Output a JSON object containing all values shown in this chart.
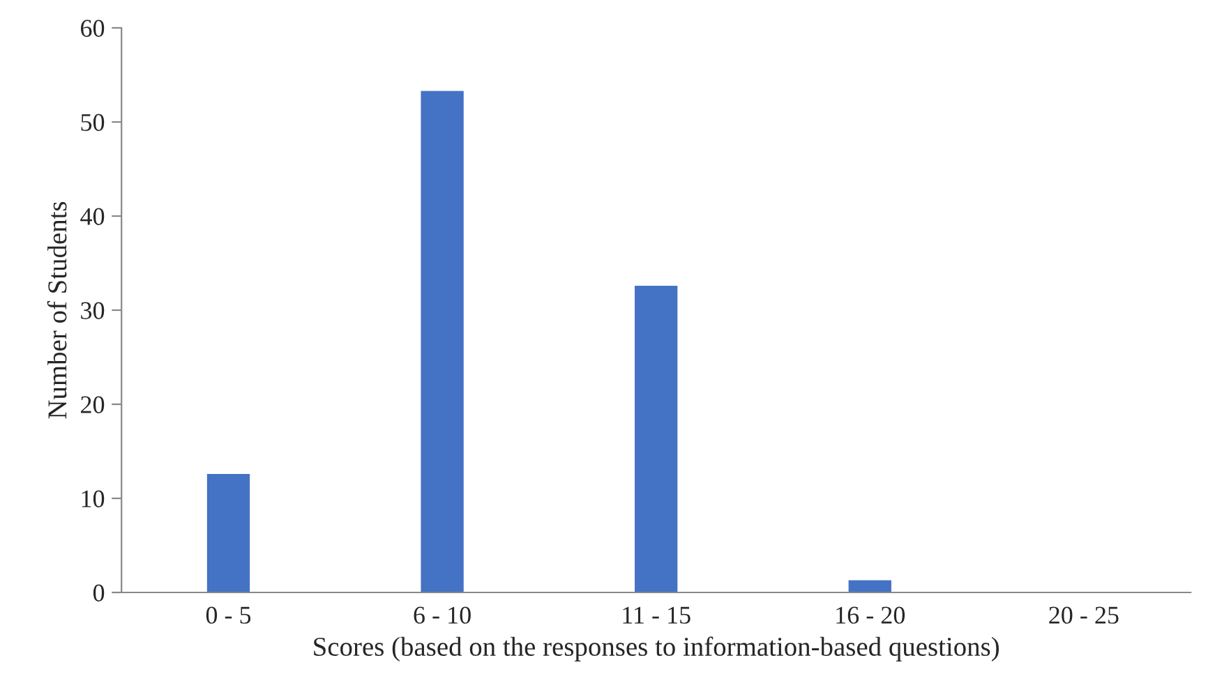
{
  "chart_data": {
    "type": "bar",
    "xlabel": "Scores (based on the responses to information-based questions)",
    "ylabel": "Number of Students",
    "categories": [
      "0 - 5",
      "6 - 10",
      "11 - 15",
      "16 - 20",
      "20 - 25"
    ],
    "values": [
      12.6,
      53.3,
      32.6,
      1.3,
      0
    ],
    "color": "#4472c4",
    "ylim": [
      0,
      60
    ],
    "yticks": [
      0,
      10,
      20,
      30,
      40,
      50,
      60
    ],
    "grid": false
  }
}
